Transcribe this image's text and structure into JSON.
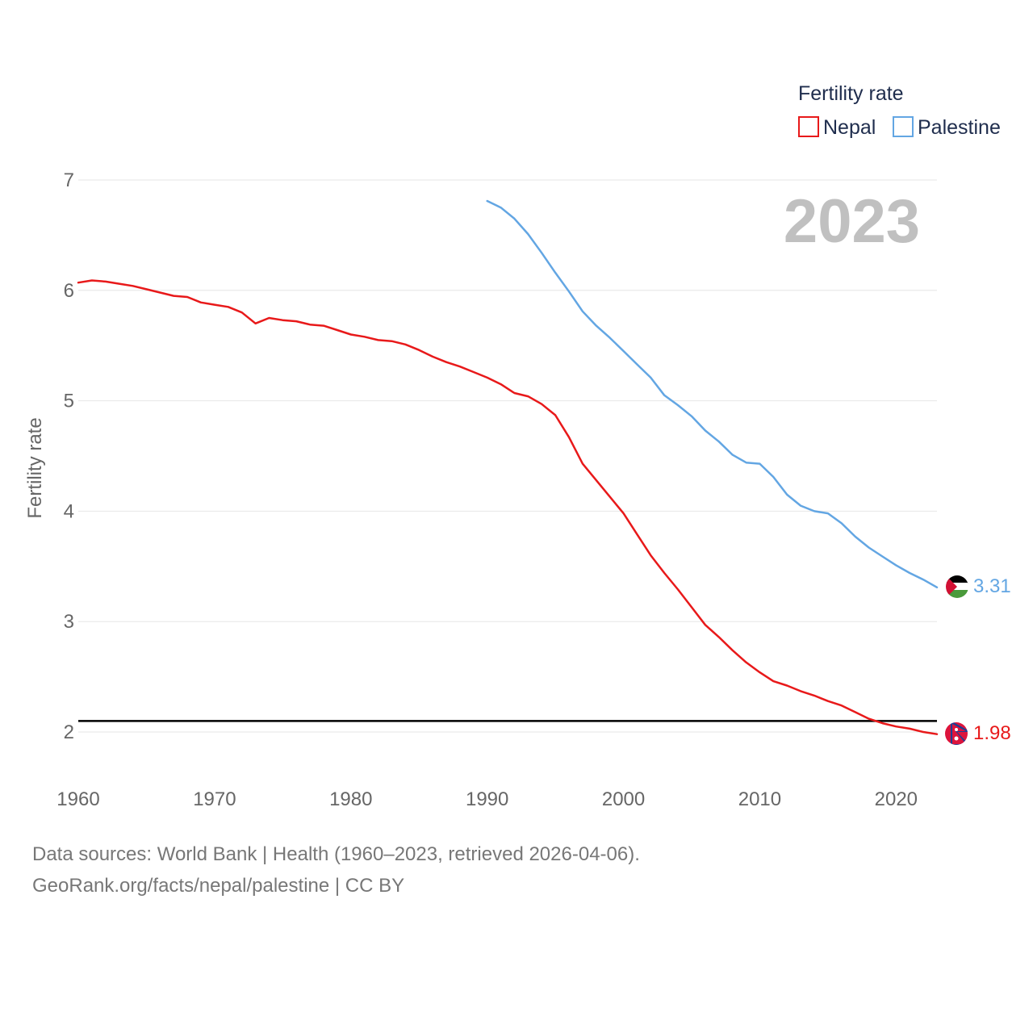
{
  "colors": {
    "nepal": "#e8191a",
    "palestine": "#63a6e3",
    "grid": "#e6e6e6",
    "reference": "#000000"
  },
  "chart_data": {
    "type": "line",
    "title": "Fertility rate",
    "ylabel": "Fertility rate",
    "xlabel": "",
    "xlim": [
      1960,
      2023
    ],
    "ylim": [
      1.7,
      7.0
    ],
    "x_ticks": [
      1960,
      1970,
      1980,
      1990,
      2000,
      2010,
      2020
    ],
    "y_ticks": [
      2,
      3,
      4,
      5,
      6,
      7
    ],
    "current_year": "2023",
    "reference_line": {
      "y": 2.1,
      "label": ""
    },
    "legend": {
      "title": "Fertility rate",
      "position": "top-right"
    },
    "series": [
      {
        "name": "Nepal",
        "color": "#e8191a",
        "end_label": "1.98",
        "x": [
          1960,
          1961,
          1962,
          1963,
          1964,
          1965,
          1966,
          1967,
          1968,
          1969,
          1970,
          1971,
          1972,
          1973,
          1974,
          1975,
          1976,
          1977,
          1978,
          1979,
          1980,
          1981,
          1982,
          1983,
          1984,
          1985,
          1986,
          1987,
          1988,
          1989,
          1990,
          1991,
          1992,
          1993,
          1994,
          1995,
          1996,
          1997,
          1998,
          1999,
          2000,
          2001,
          2002,
          2003,
          2004,
          2005,
          2006,
          2007,
          2008,
          2009,
          2010,
          2011,
          2012,
          2013,
          2014,
          2015,
          2016,
          2017,
          2018,
          2019,
          2020,
          2021,
          2022,
          2023
        ],
        "values": [
          6.07,
          6.09,
          6.08,
          6.06,
          6.04,
          6.01,
          5.98,
          5.95,
          5.94,
          5.89,
          5.87,
          5.85,
          5.8,
          5.7,
          5.75,
          5.73,
          5.72,
          5.69,
          5.68,
          5.64,
          5.6,
          5.58,
          5.55,
          5.54,
          5.51,
          5.46,
          5.4,
          5.35,
          5.31,
          5.26,
          5.21,
          5.15,
          5.07,
          5.04,
          4.97,
          4.87,
          4.67,
          4.43,
          4.28,
          4.13,
          3.98,
          3.79,
          3.6,
          3.44,
          3.29,
          3.13,
          2.97,
          2.86,
          2.74,
          2.63,
          2.54,
          2.46,
          2.42,
          2.37,
          2.33,
          2.28,
          2.24,
          2.18,
          2.12,
          2.08,
          2.05,
          2.03,
          2.0,
          1.98
        ]
      },
      {
        "name": "Palestine",
        "color": "#63a6e3",
        "end_label": "3.31",
        "x": [
          1990,
          1991,
          1992,
          1993,
          1994,
          1995,
          1996,
          1997,
          1998,
          1999,
          2000,
          2001,
          2002,
          2003,
          2004,
          2005,
          2006,
          2007,
          2008,
          2009,
          2010,
          2011,
          2012,
          2013,
          2014,
          2015,
          2016,
          2017,
          2018,
          2019,
          2020,
          2021,
          2022,
          2023
        ],
        "values": [
          6.81,
          6.75,
          6.65,
          6.51,
          6.34,
          6.16,
          5.99,
          5.81,
          5.68,
          5.57,
          5.45,
          5.33,
          5.21,
          5.05,
          4.96,
          4.86,
          4.73,
          4.63,
          4.51,
          4.44,
          4.43,
          4.31,
          4.15,
          4.05,
          4.0,
          3.98,
          3.89,
          3.77,
          3.67,
          3.59,
          3.51,
          3.44,
          3.38,
          3.31
        ]
      }
    ]
  },
  "legend": {
    "title": "Fertility rate",
    "items": [
      "Nepal",
      "Palestine"
    ]
  },
  "source": {
    "line1": "Data sources: World Bank | Health (1960–2023, retrieved 2026-04-06).",
    "line2": "GeoRank.org/facts/nepal/palestine | CC BY"
  }
}
